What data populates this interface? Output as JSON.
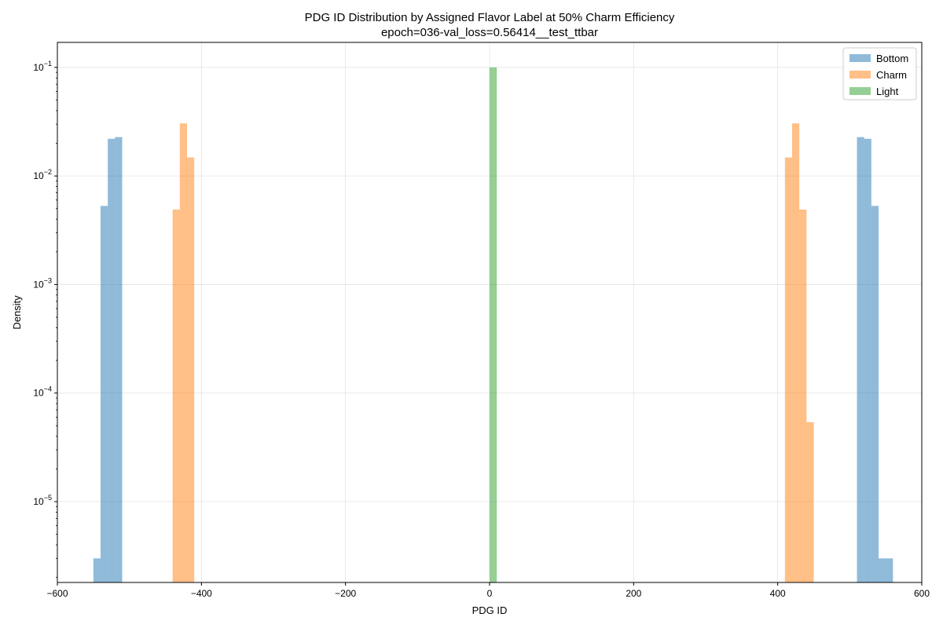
{
  "chart_data": {
    "type": "bar",
    "title": "PDG ID Distribution by Assigned Flavor Label at 50% Charm Efficiency",
    "subtitle": "epoch=036-val_loss=0.56414__test_ttbar",
    "xlabel": "PDG ID",
    "ylabel": "Density",
    "xlim": [
      -600,
      600
    ],
    "ylim": [
      1.8e-06,
      0.17
    ],
    "yscale": "log",
    "grid": true,
    "legend_position": "top-right",
    "bin_width": 10,
    "x_ticks": [
      -600,
      -400,
      -200,
      0,
      200,
      400,
      600
    ],
    "x_tick_labels": [
      "−600",
      "−400",
      "−200",
      "0",
      "200",
      "400",
      "600"
    ],
    "y_ticks": [
      1e-05,
      0.0001,
      0.001,
      0.01,
      0.1
    ],
    "y_tick_labels": [
      {
        "base": "10",
        "exp": "−5"
      },
      {
        "base": "10",
        "exp": "−4"
      },
      {
        "base": "10",
        "exp": "−3"
      },
      {
        "base": "10",
        "exp": "−2"
      },
      {
        "base": "10",
        "exp": "−1"
      }
    ],
    "series": [
      {
        "name": "Bottom",
        "color": "#1f77b4",
        "opacity": 0.5,
        "bins": [
          {
            "x0": -550,
            "x1": -540,
            "value": 3e-06
          },
          {
            "x0": -540,
            "x1": -530,
            "value": 0.0053
          },
          {
            "x0": -530,
            "x1": -520,
            "value": 0.022
          },
          {
            "x0": -520,
            "x1": -510,
            "value": 0.0228
          },
          {
            "x0": 510,
            "x1": 520,
            "value": 0.0228
          },
          {
            "x0": 520,
            "x1": 530,
            "value": 0.022
          },
          {
            "x0": 530,
            "x1": 540,
            "value": 0.0053
          },
          {
            "x0": 540,
            "x1": 560,
            "value": 3e-06
          }
        ]
      },
      {
        "name": "Charm",
        "color": "#ff7f0e",
        "opacity": 0.5,
        "bins": [
          {
            "x0": -440,
            "x1": -430,
            "value": 0.0049
          },
          {
            "x0": -430,
            "x1": -420,
            "value": 0.0305
          },
          {
            "x0": -420,
            "x1": -410,
            "value": 0.0148
          },
          {
            "x0": 410,
            "x1": 420,
            "value": 0.0148
          },
          {
            "x0": 420,
            "x1": 430,
            "value": 0.0305
          },
          {
            "x0": 430,
            "x1": 440,
            "value": 0.0049
          },
          {
            "x0": 440,
            "x1": 450,
            "value": 5.4e-05
          }
        ]
      },
      {
        "name": "Light",
        "color": "#2ca02c",
        "opacity": 0.5,
        "bins": [
          {
            "x0": 0,
            "x1": 10,
            "value": 0.1
          }
        ]
      }
    ]
  }
}
